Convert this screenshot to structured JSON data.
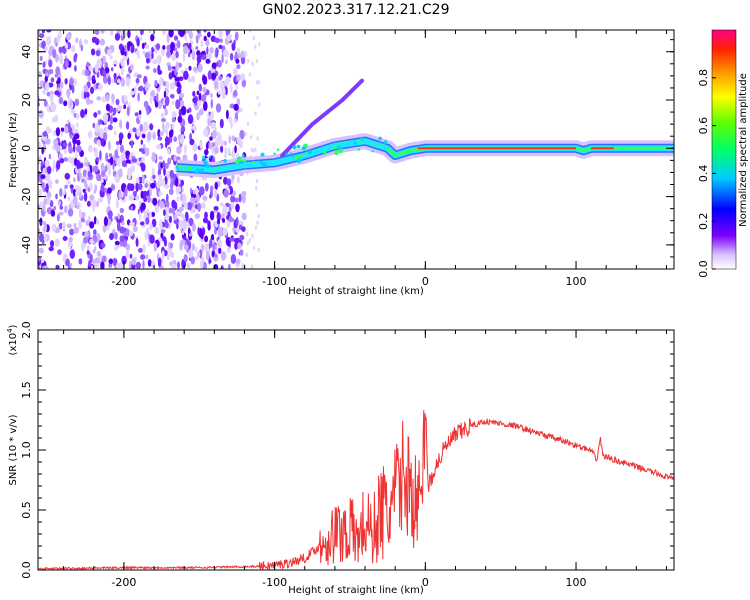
{
  "title": "GN02.2023.317.12.21.C29",
  "chart_data": [
    {
      "type": "heatmap",
      "xlabel": "Height of straight line (km)",
      "ylabel": "Frequency (Hz)",
      "xlim": [
        -257,
        165
      ],
      "ylim": [
        -50,
        49
      ],
      "xticks": [
        -200,
        -100,
        0,
        100
      ],
      "yticks": [
        -40,
        -20,
        0,
        20,
        40
      ],
      "colorbar": {
        "label": "Normalized spectral amplitude",
        "range": [
          0,
          1
        ],
        "ticks": [
          "0.0",
          "0.2",
          "0.4",
          "0.6",
          "0.8"
        ]
      },
      "signal_track": [
        {
          "x": -165,
          "y": -8
        },
        {
          "x": -140,
          "y": -9
        },
        {
          "x": -120,
          "y": -7
        },
        {
          "x": -100,
          "y": -6
        },
        {
          "x": -80,
          "y": -3
        },
        {
          "x": -60,
          "y": 1
        },
        {
          "x": -40,
          "y": 3
        },
        {
          "x": -25,
          "y": 0
        },
        {
          "x": -20,
          "y": -3
        },
        {
          "x": -10,
          "y": -1
        },
        {
          "x": 0,
          "y": 0
        },
        {
          "x": 50,
          "y": 0
        },
        {
          "x": 100,
          "y": 0
        },
        {
          "x": 105,
          "y": -1
        },
        {
          "x": 110,
          "y": 0
        },
        {
          "x": 165,
          "y": 0
        }
      ]
    },
    {
      "type": "line",
      "xlabel": "Height of straight line (km)",
      "ylabel": "SNR (10 * v/v)",
      "yscale_label": "(x10",
      "yscale_exp": "4",
      "yscale_close": ")",
      "xlim": [
        -257,
        165
      ],
      "ylim": [
        0,
        2
      ],
      "xticks": [
        -200,
        -100,
        0,
        100
      ],
      "yticks": [
        "0.0",
        "0.5",
        "1.0",
        "1.5",
        "2.0"
      ],
      "series": [
        {
          "color": "#ee3333",
          "x": [
            -257,
            -200,
            -150,
            -110,
            -100,
            -90,
            -80,
            -70,
            -60,
            -50,
            -45,
            -40,
            -35,
            -30,
            -25,
            -20,
            -15,
            -10,
            -5,
            -2,
            0,
            2,
            5,
            10,
            15,
            20,
            30,
            40,
            50,
            60,
            70,
            80,
            90,
            100,
            110,
            114,
            116,
            118,
            125,
            140,
            155,
            165
          ],
          "y": [
            0.01,
            0.02,
            0.02,
            0.03,
            0.04,
            0.06,
            0.1,
            0.2,
            0.3,
            0.35,
            0.25,
            0.4,
            0.3,
            0.5,
            0.45,
            0.6,
            0.8,
            0.7,
            0.5,
            0.6,
            1.4,
            0.7,
            0.8,
            0.95,
            1.05,
            1.12,
            1.2,
            1.24,
            1.22,
            1.2,
            1.16,
            1.12,
            1.08,
            1.04,
            0.99,
            0.92,
            1.1,
            0.95,
            0.92,
            0.86,
            0.8,
            0.75
          ]
        }
      ]
    }
  ]
}
